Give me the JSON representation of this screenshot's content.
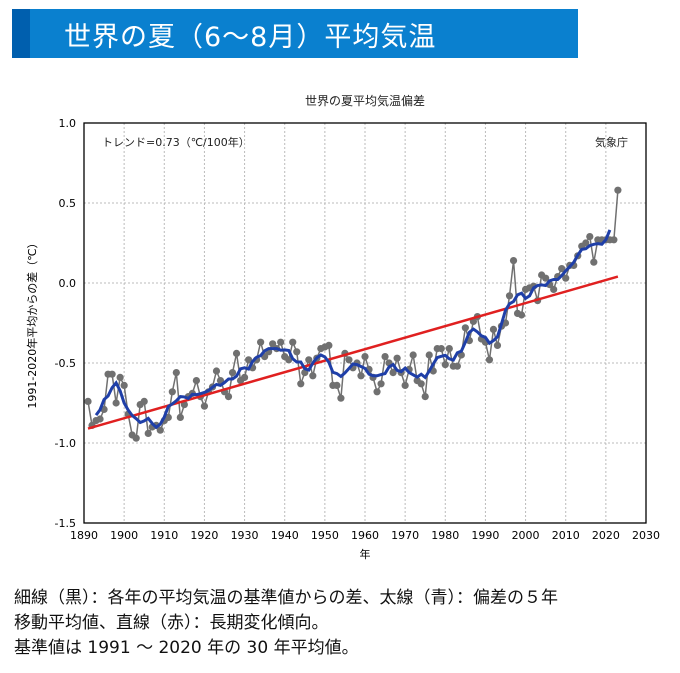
{
  "header": {
    "title": "世界の夏（6～8月）平均気温"
  },
  "caption": [
    "細線（黒）：各年の平均気温の基準値からの差、太線（青）：偏差の５年",
    "移動平均値、直線（赤）：長期変化傾向。",
    "基準値は 1991 ～ 2020 年の 30 年平均値。"
  ],
  "colors": {
    "header": "#0a80cf",
    "header_stripe": "#005fae",
    "annual": "#707070",
    "moving_average": "#1f3fa8",
    "trend": "#e02020"
  },
  "chart_data": {
    "type": "line",
    "title": "世界の夏平均気温偏差",
    "xlabel": "年",
    "ylabel": "1991-2020年平均からの差（℃）",
    "annotation_trend": "トレンド=0.73（℃/100年）",
    "annotation_source": "気象庁",
    "xlim": [
      1890,
      2030
    ],
    "ylim": [
      -1.5,
      1.0
    ],
    "xticks": [
      "1890",
      "1900",
      "1910",
      "1920",
      "1930",
      "1940",
      "1950",
      "1960",
      "1970",
      "1980",
      "1990",
      "2000",
      "2010",
      "2020",
      "2030"
    ],
    "yticks": [
      "1.0",
      "0.5",
      "0.0",
      "-0.5",
      "-1.0",
      "-1.5"
    ],
    "grid": true,
    "x_start": 1891,
    "annual_anomaly": [
      -0.74,
      -0.89,
      -0.86,
      -0.85,
      -0.79,
      -0.57,
      -0.57,
      -0.75,
      -0.59,
      -0.64,
      -0.82,
      -0.95,
      -0.97,
      -0.76,
      -0.74,
      -0.94,
      -0.9,
      -0.89,
      -0.92,
      -0.86,
      -0.84,
      -0.68,
      -0.56,
      -0.84,
      -0.76,
      -0.71,
      -0.69,
      -0.61,
      -0.71,
      -0.77,
      -0.68,
      -0.65,
      -0.55,
      -0.61,
      -0.68,
      -0.71,
      -0.56,
      -0.44,
      -0.61,
      -0.59,
      -0.48,
      -0.53,
      -0.48,
      -0.37,
      -0.46,
      -0.43,
      -0.38,
      -0.41,
      -0.37,
      -0.46,
      -0.48,
      -0.37,
      -0.43,
      -0.63,
      -0.56,
      -0.48,
      -0.58,
      -0.47,
      -0.41,
      -0.4,
      -0.39,
      -0.64,
      -0.64,
      -0.72,
      -0.44,
      -0.48,
      -0.53,
      -0.5,
      -0.58,
      -0.46,
      -0.54,
      -0.59,
      -0.68,
      -0.63,
      -0.46,
      -0.5,
      -0.56,
      -0.47,
      -0.56,
      -0.64,
      -0.54,
      -0.45,
      -0.61,
      -0.63,
      -0.71,
      -0.45,
      -0.55,
      -0.41,
      -0.41,
      -0.51,
      -0.41,
      -0.52,
      -0.52,
      -0.45,
      -0.28,
      -0.36,
      -0.24,
      -0.21,
      -0.35,
      -0.37,
      -0.48,
      -0.29,
      -0.39,
      -0.27,
      -0.25,
      -0.08,
      0.14,
      -0.19,
      -0.2,
      -0.04,
      -0.03,
      -0.02,
      -0.11,
      0.05,
      0.03,
      -0.01,
      -0.04,
      0.04,
      0.09,
      0.03,
      0.11,
      0.11,
      0.17,
      0.23,
      0.25,
      0.29,
      0.13,
      0.27,
      0.27,
      0.27,
      0.27,
      0.27,
      0.58
    ],
    "moving_average_window": 5,
    "trend_line": {
      "slope_per_100yr": 0.73,
      "from": [
        1891,
        -0.91
      ],
      "to": [
        2023,
        0.04
      ]
    }
  }
}
